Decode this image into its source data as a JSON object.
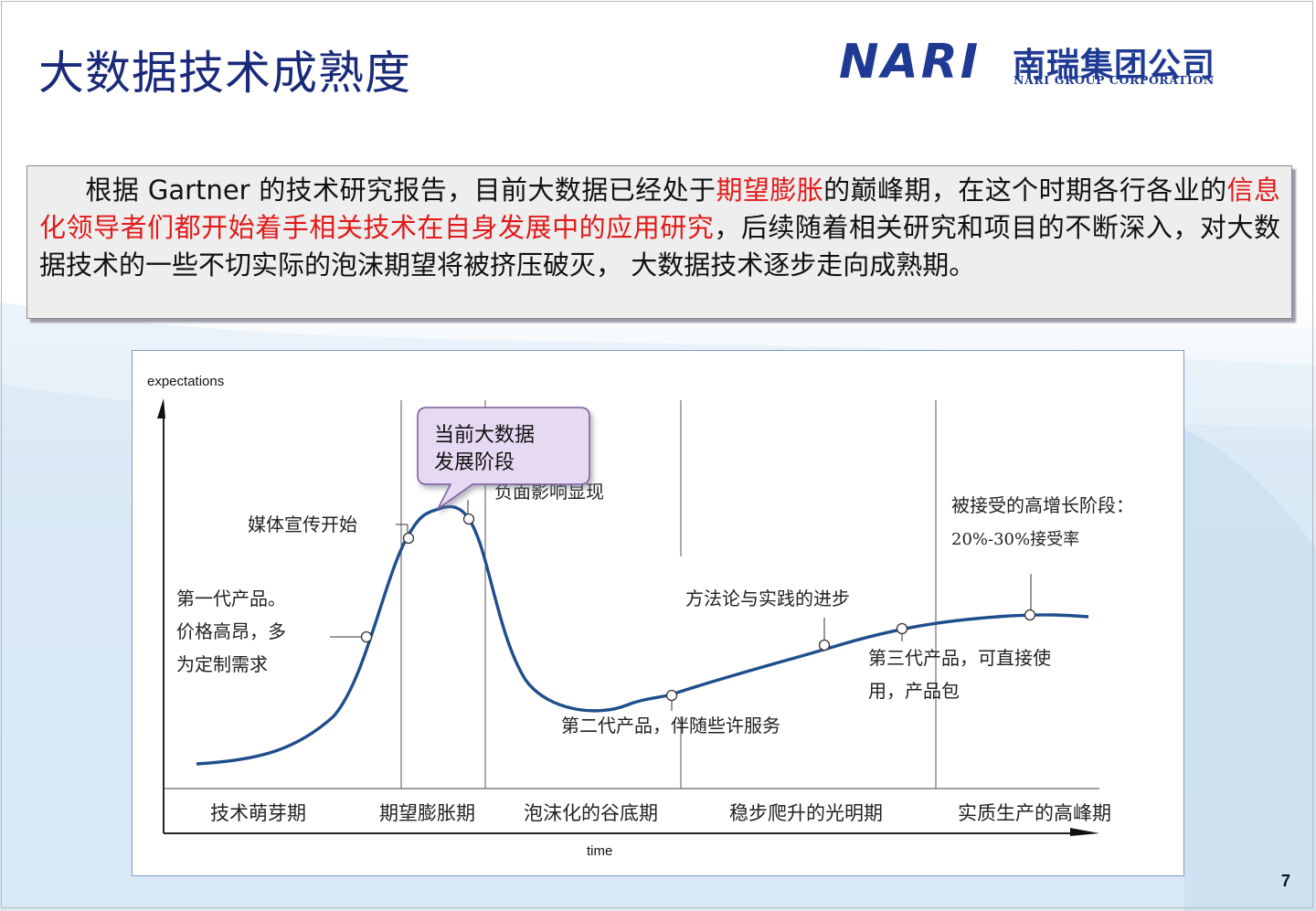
{
  "slide": {
    "title": "大数据技术成熟度",
    "page_number": "7",
    "logo": {
      "mark": "NARI",
      "cn_name": "南瑞集团公司",
      "en_name": "NARI GROUP CORPORATION"
    }
  },
  "summary": {
    "seg1": "根据 Gartner 的技术研究报告，目前大数据已经处于",
    "seg2_red": "期望膨胀",
    "seg3": "的巅峰期，在这个时期各行各业的",
    "seg4_red": "信息化领导者们都开始着手相关技术在自身发展中的应用研究",
    "seg5": "，后续随着相关研究和项目的不断深入，对大数据技术的一些不切实际的泡沫期望将被挤压破灭， 大数据技术逐步走向成熟期。",
    "highlight_color": "#e11a1a"
  },
  "hype_cycle": {
    "y_axis_label": "expectations",
    "x_axis_label": "time",
    "phases": [
      "技术萌芽期",
      "期望膨胀期",
      "泡沫化的谷底期",
      "稳步爬升的光明期",
      "实质生产的高峰期"
    ],
    "annotations": {
      "gen1_line1": "第一代产品。",
      "gen1_line2": "价格高昂，多",
      "gen1_line3": "为定制需求",
      "media_start": "媒体宣传开始",
      "negative_impact": "负面影响显现",
      "gen2": "第二代产品，伴随些许服务",
      "methodology": "方法论与实践的进步",
      "gen3_line1": "第三代产品，可直接使",
      "gen3_line2": "用，产品包",
      "high_growth_line1": "被接受的高增长阶段：",
      "high_growth_line2": "20%-30%接受率"
    },
    "callout": {
      "line1": "当前大数据",
      "line2": "发展阶段",
      "fill": "#e6d9f2",
      "stroke": "#7a5a9a"
    },
    "curve_color": "#1f4e8c"
  }
}
